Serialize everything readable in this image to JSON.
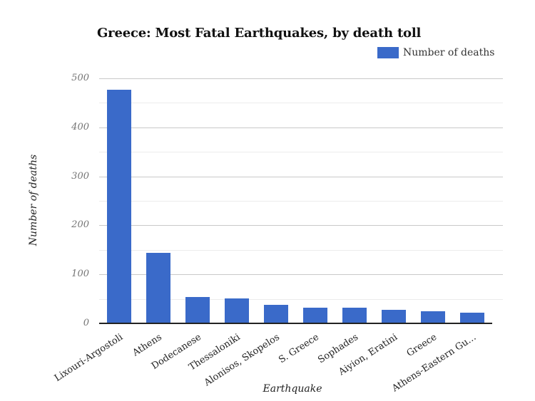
{
  "title": "Greece: Most Fatal Earthquakes, by death toll",
  "legend": {
    "label": "Number of deaths"
  },
  "colors": {
    "bar": "#3A6AC9",
    "major_gridline": "#c9c9c9",
    "minor_gridline": "#ececec",
    "axis_line": "#222222",
    "tick_label": "#757575"
  },
  "chart_data": {
    "type": "bar",
    "title": "Greece: Most Fatal Earthquakes, by death toll",
    "series_name": "Number of deaths",
    "categories": [
      "Lixouri-Argostoli",
      "Athens",
      "Dodecanese",
      "Thessaloniki",
      "Alonisos, Skopelos",
      "S. Greece",
      "Sophades",
      "Aiyion, Eratini",
      "Greece",
      "Athens-Eastern Gu…"
    ],
    "values": [
      476,
      143,
      53,
      50,
      37,
      31,
      31,
      26,
      24,
      20
    ],
    "xlabel": "Earthquake",
    "ylabel": "Number of deaths",
    "ylim": [
      0,
      500
    ],
    "yticks": [
      0,
      100,
      200,
      300,
      400,
      500
    ],
    "ytick_step": 100,
    "ytick_minor_step": 50,
    "grid": "on",
    "legend_position": "top-right",
    "bar_color": "#3A6AC9"
  }
}
